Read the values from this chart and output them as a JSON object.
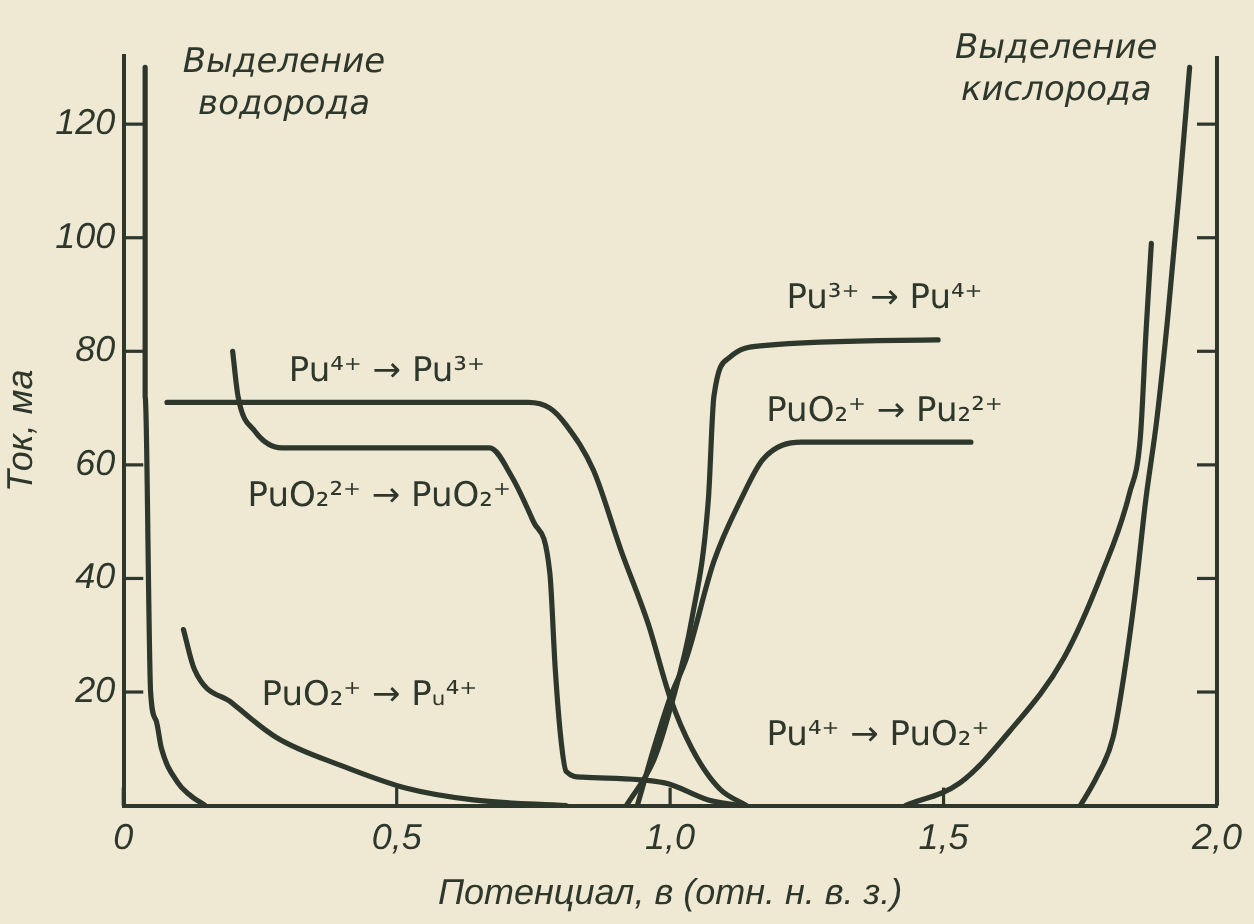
{
  "chart_data": {
    "type": "line",
    "xlabel": "Потенциал, в (отн. н. в. з.)",
    "ylabel": "Ток, ма",
    "xlim": [
      0,
      2
    ],
    "xticks": [
      0,
      {
        "value": 0.5,
        "label": "0,5"
      },
      {
        "value": 1,
        "label": "1,0"
      },
      {
        "value": 1.5,
        "label": "1,5"
      },
      {
        "value": 2,
        "label": "2,0"
      }
    ],
    "ylim": [
      0,
      132
    ],
    "yticks": [
      20,
      40,
      60,
      80,
      100,
      120
    ],
    "marker": "none",
    "line_style": "solid",
    "legend": false,
    "series": [
      {
        "color": "#2e372c",
        "x": [
          0.04,
          0.04,
          0.05,
          0.06,
          0.07,
          0.1,
          0.12,
          0.15
        ],
        "values": [
          130,
          72,
          20,
          15,
          10,
          4,
          2,
          0
        ]
      },
      {
        "color": "#2e372c",
        "x": [
          0.08,
          0.74,
          0.78,
          0.81,
          0.86,
          0.91,
          0.96,
          1.0,
          1.04,
          1.09,
          1.14
        ],
        "values": [
          71,
          71,
          70,
          67,
          59,
          45,
          32,
          19,
          10,
          3,
          0
        ]
      },
      {
        "color": "#2e372c",
        "x": [
          0.2,
          0.21,
          0.24,
          0.29,
          0.67,
          0.71,
          0.75,
          0.78,
          0.79,
          0.8,
          0.81,
          0.84,
          0.99,
          1.07,
          1.13
        ],
        "values": [
          80,
          72,
          66,
          63,
          63,
          58,
          50,
          41,
          24,
          12,
          6,
          5,
          4,
          1,
          0
        ]
      },
      {
        "color": "#2e372c",
        "x": [
          0.11,
          0.13,
          0.2,
          0.28,
          0.4,
          0.52,
          0.64,
          0.81
        ],
        "values": [
          31,
          24,
          18,
          12,
          7,
          3,
          1,
          0
        ]
      },
      {
        "color": "#2e372c",
        "x": [
          0.92,
          0.97,
          1.0,
          1.04,
          1.07,
          1.08,
          1.11,
          1.17,
          1.49
        ],
        "values": [
          0,
          8,
          17,
          33,
          54,
          72,
          79,
          81,
          82
        ]
      },
      {
        "color": "#2e372c",
        "x": [
          0.94,
          0.97,
          1.0,
          1.03,
          1.08,
          1.13,
          1.17,
          1.24,
          1.55
        ],
        "values": [
          0,
          10,
          19,
          26,
          43,
          54,
          61,
          64,
          64
        ]
      },
      {
        "color": "#2e372c",
        "x": [
          1.43,
          1.53,
          1.62,
          1.72,
          1.79,
          1.84,
          1.86,
          1.87,
          1.88
        ],
        "values": [
          0,
          4,
          13,
          26,
          41,
          55,
          65,
          83,
          99
        ]
      },
      {
        "color": "#2e372c",
        "x": [
          1.75,
          1.78,
          1.81,
          1.83,
          1.85,
          1.87,
          1.89,
          1.91,
          1.93,
          1.95
        ],
        "values": [
          0,
          5,
          12,
          23,
          37,
          54,
          68,
          86,
          107,
          130
        ]
      }
    ],
    "annotations": [
      "Выделение\nводорода",
      "Выделение\nкислорода",
      "Pu⁴⁺ → Pu³⁺",
      "PuO₂²⁺ → PuO₂⁺",
      "PuO₂⁺ → Pᵤ⁴⁺",
      "Pu³⁺ → Pu⁴⁺",
      "PuO₂⁺ → Pu₂²⁺",
      "Pu⁴⁺ → PuO₂⁺"
    ]
  }
}
